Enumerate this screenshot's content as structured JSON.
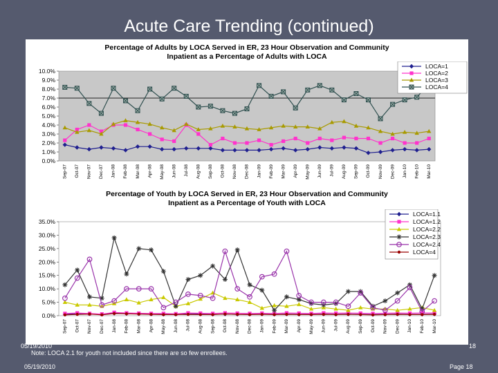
{
  "slide": {
    "title": "Acute Care Trending (continued)",
    "date_top": "05/19/2010",
    "note": "Note: LOCA 2.1 for youth not included since there are so few enrollees.",
    "slide_number": "18",
    "date_bottom": "05/19/2010",
    "page_label": "Page 18"
  },
  "chart_data": [
    {
      "type": "line",
      "title_line1": "Percentage of Adults by LOCA Served in ER, 23 Hour Observation and Community",
      "title_line2": "Inpatient as a Percentage of Adults with LOCA",
      "ylim": [
        0,
        10
      ],
      "yticks": [
        "0.0%",
        "1.0%",
        "2.0%",
        "3.0%",
        "4.0%",
        "5.0%",
        "6.0%",
        "7.0%",
        "8.0%",
        "9.0%",
        "10.0%"
      ],
      "categories": [
        "Sep-07",
        "Oct-07",
        "Nov-07",
        "Dec-07",
        "Jan-08",
        "Feb-08",
        "Mar-08",
        "Apr-08",
        "May-08",
        "Jun-08",
        "Jul-08",
        "Aug-08",
        "Sep-08",
        "Oct-08",
        "Nov-08",
        "Dec-08",
        "Jan-09",
        "Feb-09",
        "Mar-09",
        "Apr-09",
        "May-09",
        "Jun-09",
        "Jul-09",
        "Aug-09",
        "Sep-09",
        "Oct-09",
        "Nov-09",
        "Dec-09",
        "Jan-10",
        "Feb-10",
        "Mar-10"
      ],
      "reference_line": 7.0,
      "series": [
        {
          "name": "LOCA=1",
          "color": "#1f1f8f",
          "marker": "diamond",
          "values": [
            1.8,
            1.5,
            1.3,
            1.5,
            1.4,
            1.2,
            1.6,
            1.6,
            1.3,
            1.3,
            1.4,
            1.4,
            1.4,
            1.2,
            1.2,
            1.2,
            1.2,
            1.3,
            1.4,
            1.2,
            1.3,
            1.5,
            1.4,
            1.5,
            1.4,
            0.9,
            1.0,
            1.2,
            1.3,
            1.2,
            1.3
          ]
        },
        {
          "name": "LOCA=2",
          "color": "#ff33cc",
          "marker": "square",
          "values": [
            2.3,
            3.5,
            4.0,
            3.3,
            4.0,
            4.0,
            3.5,
            3.0,
            2.4,
            2.2,
            4.0,
            3.0,
            1.8,
            2.5,
            2.0,
            2.0,
            2.3,
            1.8,
            2.2,
            2.5,
            2.0,
            2.5,
            2.3,
            2.6,
            2.5,
            2.5,
            2.0,
            2.5,
            2.0,
            2.0,
            2.5
          ]
        },
        {
          "name": "LOCA=3",
          "color": "#a89a00",
          "marker": "triangle",
          "values": [
            3.7,
            3.2,
            3.4,
            3.0,
            4.1,
            4.5,
            4.3,
            4.1,
            3.7,
            3.4,
            4.1,
            3.5,
            3.6,
            3.9,
            3.8,
            3.6,
            3.5,
            3.7,
            3.9,
            3.8,
            3.8,
            3.6,
            4.3,
            4.4,
            3.9,
            3.7,
            3.3,
            3.0,
            3.2,
            3.1,
            3.3
          ]
        },
        {
          "name": "LOCA=4",
          "color": "#2f4f4f",
          "marker": "boxx",
          "values": [
            8.2,
            8.1,
            6.4,
            5.3,
            8.1,
            6.7,
            5.6,
            8.0,
            6.9,
            8.1,
            7.2,
            6.0,
            6.1,
            5.6,
            5.3,
            5.8,
            8.4,
            7.2,
            7.7,
            5.9,
            7.9,
            8.4,
            7.9,
            6.8,
            7.5,
            6.8,
            4.7,
            6.3,
            6.8,
            7.1,
            8.6
          ]
        }
      ]
    },
    {
      "type": "line",
      "title_line1": "Percentage of Youth by LOCA Served in ER, 23 Hour Observation and Community",
      "title_line2": "Inpatient as a Percentage of Youth with LOCA",
      "ylim": [
        0,
        35
      ],
      "yticks": [
        "0.0%",
        "5.0%",
        "10.0%",
        "15.0%",
        "20.0%",
        "25.0%",
        "30.0%",
        "35.0%"
      ],
      "categories": [
        "Sep-07",
        "Oct-07",
        "Nov-07",
        "Dec-07",
        "Jan-08",
        "Feb-08",
        "Mar-08",
        "Apr-08",
        "May-08",
        "Jun-08",
        "Jul-08",
        "Aug-08",
        "Sep-08",
        "Oct-08",
        "Nov-08",
        "Dec-08",
        "Jan-09",
        "Feb-09",
        "Mar-09",
        "Apr-09",
        "May-09",
        "Jun-09",
        "Jul-09",
        "Aug-09",
        "Sep-09",
        "Oct-09",
        "Nov-09",
        "Dec-09",
        "Jan-10",
        "Feb-10",
        "Mar-10"
      ],
      "series": [
        {
          "name": "LOCA=1.1",
          "color": "#1f1f8f",
          "marker": "diamond",
          "values": [
            0.5,
            0.8,
            0.7,
            0.5,
            0.9,
            0.8,
            0.7,
            0.6,
            0.5,
            0.5,
            0.7,
            0.6,
            0.5,
            0.6,
            0.5,
            0.5,
            0.6,
            0.5,
            0.6,
            0.5,
            0.5,
            0.6,
            0.5,
            0.6,
            0.5,
            0.4,
            0.5,
            0.6,
            0.5,
            0.5,
            0.6
          ]
        },
        {
          "name": "LOCA=1.2",
          "color": "#ff33cc",
          "marker": "square",
          "values": [
            0.8,
            1.0,
            0.8,
            0.6,
            1.2,
            1.0,
            0.9,
            0.8,
            0.8,
            0.7,
            1.0,
            0.9,
            0.8,
            1.0,
            0.9,
            0.8,
            0.9,
            0.8,
            1.0,
            0.9,
            0.8,
            1.0,
            0.9,
            1.0,
            0.9,
            0.8,
            0.9,
            1.0,
            0.9,
            1.0,
            1.0
          ]
        },
        {
          "name": "LOCA=2.2",
          "color": "#c9c900",
          "marker": "triangle",
          "values": [
            5.0,
            4.0,
            4.0,
            3.5,
            4.5,
            6.0,
            4.8,
            6.0,
            6.8,
            3.5,
            4.5,
            6.2,
            8.5,
            6.5,
            6.0,
            5.0,
            2.8,
            3.8,
            3.5,
            4.2,
            2.5,
            3.0,
            2.5,
            2.0,
            3.0,
            2.5,
            2.5,
            2.0,
            2.5,
            3.0,
            2.0
          ]
        },
        {
          "name": "LOCA=2.3",
          "color": "#333333",
          "marker": "star",
          "values": [
            11.5,
            17.0,
            7.0,
            6.5,
            29.0,
            15.5,
            25.0,
            24.5,
            16.5,
            3.5,
            13.5,
            15.0,
            18.5,
            13.5,
            24.5,
            11.5,
            9.5,
            2.0,
            7.0,
            6.0,
            4.5,
            4.0,
            4.5,
            9.0,
            9.0,
            3.5,
            5.5,
            8.5,
            11.5,
            2.5,
            15.0
          ]
        },
        {
          "name": "LOCA=2.4",
          "color": "#9933aa",
          "marker": "circle",
          "values": [
            6.5,
            14.0,
            21.0,
            4.0,
            5.5,
            10.0,
            10.0,
            10.0,
            3.0,
            5.0,
            8.0,
            7.5,
            6.5,
            24.0,
            10.0,
            7.0,
            14.5,
            15.5,
            24.0,
            7.5,
            5.0,
            5.0,
            5.0,
            3.5,
            8.5,
            3.0,
            2.0,
            5.5,
            10.5,
            1.5,
            5.5
          ]
        },
        {
          "name": "LOCA=4",
          "color": "#990000",
          "marker": "dot",
          "values": [
            0.3,
            0.5,
            0.6,
            0.3,
            0.8,
            0.7,
            0.6,
            0.5,
            0.4,
            0.4,
            0.5,
            0.4,
            0.4,
            0.6,
            0.5,
            0.4,
            0.5,
            0.4,
            0.5,
            0.4,
            0.4,
            0.5,
            0.4,
            0.5,
            0.4,
            0.3,
            0.4,
            0.5,
            0.4,
            0.4,
            0.5
          ]
        }
      ]
    }
  ]
}
